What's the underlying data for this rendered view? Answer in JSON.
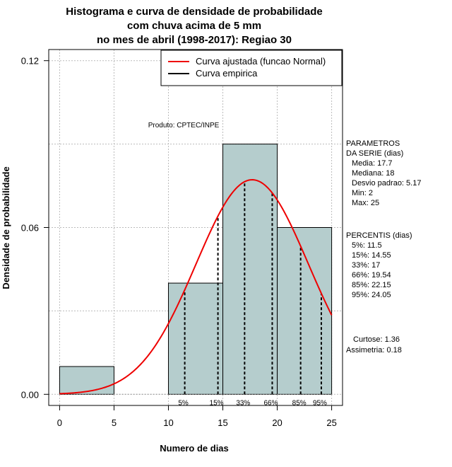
{
  "chart_data": {
    "type": "bar",
    "title_lines": [
      "Histograma e curva de densidade de probabilidade",
      "com chuva acima de 5 mm",
      "no mes de abril (1998-2017): Regiao 30"
    ],
    "xlabel": "Numero de dias",
    "ylabel": "Densidade de probabilidade",
    "xlim": [
      -1,
      26
    ],
    "ylim": [
      -0.004,
      0.124
    ],
    "x_ticks": [
      0,
      5,
      10,
      15,
      20,
      25
    ],
    "y_ticks": [
      0.0,
      0.06,
      0.12
    ],
    "y_tick_labels": [
      "0.00",
      "0.06",
      "0.12"
    ],
    "bins": [
      {
        "from": 0,
        "to": 5,
        "density": 0.01
      },
      {
        "from": 5,
        "to": 10,
        "density": 0.0
      },
      {
        "from": 10,
        "to": 15,
        "density": 0.04
      },
      {
        "from": 15,
        "to": 20,
        "density": 0.09
      },
      {
        "from": 20,
        "to": 25,
        "density": 0.06
      }
    ],
    "bar_color": "#b5cdcd",
    "curve_color": "#ee0000",
    "normal_fit": {
      "mean": 17.7,
      "sd": 5.17,
      "x_from": 0,
      "x_to": 25
    },
    "grid_x": [
      0,
      5,
      10,
      15,
      20,
      25
    ],
    "grid_y": [
      0.0,
      0.03,
      0.06,
      0.09,
      0.12
    ],
    "legend": [
      {
        "label": "Curva ajustada (funcao Normal)",
        "color": "#ee0000"
      },
      {
        "label": "Curva empirica",
        "color": "#000000"
      }
    ],
    "source_note": "Produto: CPTEC/INPE",
    "percentiles": [
      {
        "label": "5%",
        "value": 11.5
      },
      {
        "label": "15%",
        "value": 14.55
      },
      {
        "label": "33%",
        "value": 17
      },
      {
        "label": "66%",
        "value": 19.54
      },
      {
        "label": "85%",
        "value": 22.15
      },
      {
        "label": "95%",
        "value": 24.05
      }
    ]
  },
  "side_panel": {
    "parametros_title": [
      "PARAMETROS",
      "DA SERIE (dias)"
    ],
    "parametros": [
      "Media: 17.7",
      "Mediana: 18",
      "Desvio padrao: 5.17",
      "Min: 2",
      "Max: 25"
    ],
    "percentis_title": "PERCENTIS (dias)",
    "percentis": [
      "5%: 11.5",
      "15%: 14.55",
      "33%: 17",
      "66%: 19.54",
      "85%: 22.15",
      "95%: 24.05"
    ],
    "stats": [
      "Curtose: 1.36",
      "Assimetria: 0.18"
    ]
  }
}
